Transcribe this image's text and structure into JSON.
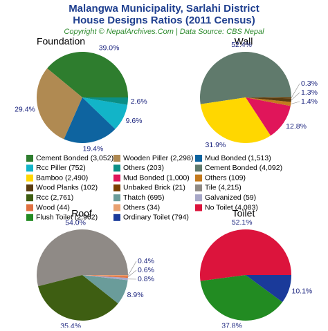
{
  "header": {
    "title": [
      "Malangwa Municipality, Sarlahi District",
      "House Designs Ratios (2011 Census)"
    ],
    "subtitle": "Copyright © NepalArchives.Com | Data Source: CBS Nepal"
  },
  "chart_data": [
    {
      "type": "pie",
      "title": "Foundation",
      "categories": [
        "Cement Bonded (3,052)",
        "Wooden Piller (2,298)",
        "Mud Bonded (1,513)",
        "Rcc Piller (752)",
        "Others (203)"
      ],
      "colors": [
        "#2e7d2e",
        "#b08a52",
        "#0e64a0",
        "#12b4c8",
        "#0a8f86"
      ],
      "values": [
        39.0,
        29.4,
        19.4,
        9.6,
        2.6
      ],
      "value_labels": [
        "39.0%",
        "29.4%",
        "19.4%",
        "9.6%",
        "2.6%"
      ]
    },
    {
      "type": "pie",
      "title": "Wall",
      "categories": [
        "Cement Bonded (4,092)",
        "Bamboo (2,490)",
        "Mud Bonded (1,000)",
        "Others (109)",
        "Wood Planks (102)",
        "Unbaked Brick (21)"
      ],
      "colors": [
        "#607a6c",
        "#ffd700",
        "#e0155a",
        "#c47a1e",
        "#5a3c10",
        "#7b3f00"
      ],
      "values": [
        52.4,
        31.9,
        12.8,
        1.4,
        1.3,
        0.3
      ],
      "value_labels": [
        "52.4%",
        "31.9%",
        "12.8%",
        "1.4%",
        "1.3%",
        "0.3%"
      ]
    },
    {
      "type": "pie",
      "title": "Roof",
      "categories": [
        "Tile (4,215)",
        "Rcc (2,761)",
        "Thatch (695)",
        "Galvanized (59)",
        "Wood (44)",
        "Others (34)"
      ],
      "colors": [
        "#8f8a86",
        "#3e5e12",
        "#6a9c9a",
        "#a8a8c8",
        "#e07040",
        "#e8a070"
      ],
      "values": [
        54.0,
        35.4,
        8.9,
        0.8,
        0.6,
        0.4
      ],
      "value_labels": [
        "54.0%",
        "35.4%",
        "8.9%",
        "0.8%",
        "0.6%",
        "0.4%"
      ]
    },
    {
      "type": "pie",
      "title": "Toilet",
      "categories": [
        "No Toilet (4,083)",
        "Flush Toilet (2,962)",
        "Ordinary Toilet (794)"
      ],
      "colors": [
        "#dc143c",
        "#228b22",
        "#1a3a9a"
      ],
      "values": [
        52.1,
        37.8,
        10.1
      ],
      "value_labels": [
        "52.1%",
        "37.8%",
        "10.1%"
      ]
    }
  ]
}
